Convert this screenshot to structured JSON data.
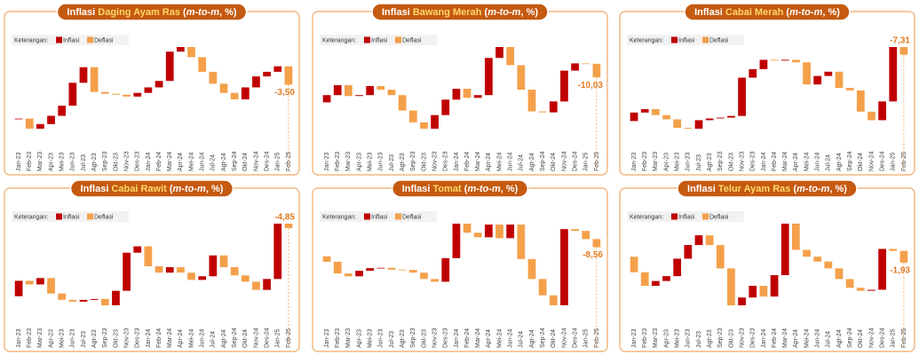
{
  "chart_data": [
    {
      "type": "waterfall",
      "title_parts": [
        "Inflasi ",
        "Daging Ayam Ras",
        " (",
        "m-to-m",
        ", %)"
      ],
      "legend_title": "Keterangan:",
      "increase": {
        "name": "Inflasi",
        "color": "#c00000"
      },
      "decrease": {
        "name": "Deflasi",
        "color": "#f4a04a"
      },
      "categories": [
        "Jan-23",
        "Feb-23",
        "Mar-23",
        "Apr-23",
        "Mei-23",
        "Jun-23",
        "Jul-23",
        "Agt-23",
        "Sep-23",
        "Okt-23",
        "Nov-23",
        "Des-23",
        "Jan-24",
        "Feb-24",
        "Mar-24",
        "Apr-24",
        "Mei-24",
        "Jun-24",
        "Jul-24",
        "Agt-24",
        "Sep-24",
        "Okt-24",
        "Nov-24",
        "Des-24",
        "Jan-25",
        "Feb-25"
      ],
      "values": [
        0.05,
        -1.93,
        0.88,
        1.58,
        1.93,
        4.38,
        2.98,
        -4.73,
        -0.35,
        -0.18,
        -0.35,
        0.7,
        1.05,
        1.23,
        5.6,
        0.88,
        -1.93,
        -2.8,
        -2.28,
        -1.75,
        -1.23,
        2.28,
        2.1,
        0.88,
        1.05,
        -3.5
      ],
      "value_labels": {
        "25": "-3,50"
      }
    },
    {
      "type": "waterfall",
      "title_parts": [
        "Inflasi ",
        "Bawang Merah",
        " (",
        "m-to-m",
        ", %)"
      ],
      "legend_title": "Keterangan:",
      "increase": {
        "name": "Inflasi",
        "color": "#c00000"
      },
      "decrease": {
        "name": "Deflasi",
        "color": "#f4a04a"
      },
      "categories": [
        "Jan-23",
        "Feb-23",
        "Mar-23",
        "Apr-23",
        "Mei-23",
        "Jun-23",
        "Jul-23",
        "Agt-23",
        "Sep-23",
        "Okt-23",
        "Nov-23",
        "Des-23",
        "Jan-24",
        "Feb-24",
        "Mar-24",
        "Apr-24",
        "Mei-24",
        "Jun-24",
        "Jul-24",
        "Agt-24",
        "Sep-24",
        "Okt-24",
        "Nov-24",
        "Des-24",
        "Jan-25",
        "Feb-25"
      ],
      "values": [
        5.36,
        7.37,
        -8.04,
        0.67,
        6.7,
        -2.68,
        -4.02,
        -11.39,
        -8.71,
        -4.69,
        10.05,
        11.39,
        8.04,
        -6.7,
        2.01,
        27.47,
        8.04,
        -13.4,
        -18.09,
        -16.08,
        -0.67,
        8.04,
        22.78,
        5.36,
        -0.3,
        -10.03
      ],
      "value_labels": {
        "25": "-10,03"
      }
    },
    {
      "type": "waterfall",
      "title_parts": [
        "Inflasi ",
        "Cabai Merah",
        " (",
        "m-to-m",
        ", %)"
      ],
      "legend_title": "Keterangan:",
      "increase": {
        "name": "Inflasi",
        "color": "#c00000"
      },
      "decrease": {
        "name": "Deflasi",
        "color": "#f4a04a"
      },
      "categories": [
        "Jan-23",
        "Feb-23",
        "Mar-23",
        "Apr-23",
        "Mei-23",
        "Jun-23",
        "Jul-23",
        "Agt-23",
        "Sep-23",
        "Okt-23",
        "Nov-23",
        "Des-23",
        "Jan-24",
        "Feb-24",
        "Mar-24",
        "Apr-24",
        "Mei-24",
        "Jun-24",
        "Jul-24",
        "Agt-24",
        "Sep-24",
        "Okt-24",
        "Nov-24",
        "Des-24",
        "Jan-25",
        "Feb-25"
      ],
      "values": [
        8.1,
        3.24,
        -5.67,
        -4.05,
        -8.1,
        -0.81,
        8.1,
        1.62,
        0.81,
        1.62,
        36.45,
        8.1,
        8.91,
        -0.81,
        0.81,
        -2.43,
        -21.06,
        8.1,
        4.05,
        -15.39,
        -2.43,
        -20.25,
        -8.1,
        17.82,
        51.84,
        -7.31
      ],
      "value_labels": {
        "25": "-7,31"
      }
    },
    {
      "type": "waterfall",
      "title_parts": [
        "Inflasi ",
        "Cabai Rawit",
        " (",
        "m-to-m",
        ", %)"
      ],
      "legend_title": "Keterangan:",
      "increase": {
        "name": "Inflasi",
        "color": "#c00000"
      },
      "decrease": {
        "name": "Deflasi",
        "color": "#f4a04a"
      },
      "categories": [
        "Jan-23",
        "Feb-23",
        "Mar-23",
        "Apr-23",
        "Mei-23",
        "Jun-23",
        "Jul-23",
        "Agt-23",
        "Sep-23",
        "Okt-23",
        "Nov-23",
        "Des-23",
        "Jan-24",
        "Feb-24",
        "Mar-24",
        "Apr-24",
        "Mei-24",
        "Jun-24",
        "Jul-24",
        "Agt-24",
        "Sep-24",
        "Okt-24",
        "Nov-24",
        "Des-24",
        "Jan-25",
        "Feb-25"
      ],
      "values": [
        17,
        -4,
        7,
        -17,
        -7,
        -2,
        2,
        1,
        -7,
        16,
        42,
        7,
        -22,
        -7,
        6,
        -6,
        -8,
        4,
        23,
        -13,
        -9,
        -7,
        -9,
        12,
        61,
        -4.85
      ],
      "value_labels": {
        "25": "-4,85"
      }
    },
    {
      "type": "waterfall",
      "title_parts": [
        "Inflasi ",
        "Tomat",
        " (",
        "m-to-m",
        ", %)"
      ],
      "legend_title": "Keterangan:",
      "increase": {
        "name": "Inflasi",
        "color": "#c00000"
      },
      "decrease": {
        "name": "Deflasi",
        "color": "#f4a04a"
      },
      "categories": [
        "Jan-23",
        "Feb-23",
        "Mar-23",
        "Apr-23",
        "Mei-23",
        "Jun-23",
        "Jul-23",
        "Agt-23",
        "Sep-23",
        "Okt-23",
        "Nov-23",
        "Des-23",
        "Jan-24",
        "Feb-24",
        "Mar-24",
        "Apr-24",
        "Mei-24",
        "Jun-24",
        "Jul-24",
        "Agt-24",
        "Sep-24",
        "Okt-24",
        "Nov-24",
        "Des-24",
        "Jan-25",
        "Feb-25"
      ],
      "values": [
        -5.7,
        -12.35,
        -2.85,
        5.7,
        2.85,
        0.3,
        -1.9,
        -0.3,
        -2.85,
        -6.65,
        -2.85,
        24.7,
        36.1,
        -9.5,
        -4.75,
        13.3,
        -14.25,
        14.25,
        -36.1,
        -20.9,
        -17.1,
        -10.45,
        79.8,
        -1.9,
        -8.55,
        -8.56
      ],
      "value_labels": {
        "25": "-8,56"
      }
    },
    {
      "type": "waterfall",
      "title_parts": [
        "Inflasi ",
        "Telur Ayam Ras",
        " (",
        "m-to-m",
        ", %)"
      ],
      "legend_title": "Keterangan:",
      "increase": {
        "name": "Inflasi",
        "color": "#c00000"
      },
      "decrease": {
        "name": "Deflasi",
        "color": "#f4a04a"
      },
      "categories": [
        "Jan-23",
        "Feb-23",
        "Mar-23",
        "Apr-23",
        "Mei-23",
        "Jun-23",
        "Jul-23",
        "Agt-23",
        "Sep-23",
        "Okt-23",
        "Nov-23",
        "Des-23",
        "Jan-24",
        "Feb-24",
        "Mar-24",
        "Apr-24",
        "Mei-24",
        "Jun-24",
        "Jul-24",
        "Agt-24",
        "Sep-24",
        "Okt-24",
        "Nov-24",
        "Des-24",
        "Jan-25",
        "Feb-25"
      ],
      "values": [
        -2.56,
        -2.24,
        0.8,
        0.8,
        2.88,
        2.24,
        1.6,
        -1.6,
        -3.84,
        -6.08,
        1.28,
        1.92,
        -1.76,
        3.52,
        8.48,
        -4.32,
        -1.12,
        -0.8,
        -1.12,
        -1.76,
        -1.44,
        -0.48,
        0.16,
        6.72,
        -0.32,
        -1.93
      ],
      "value_labels": {
        "25": "-1,93"
      }
    }
  ]
}
